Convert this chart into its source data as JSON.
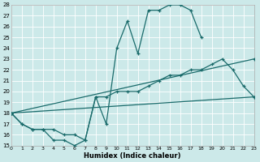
{
  "xlabel": "Humidex (Indice chaleur)",
  "bg_color": "#cce9e9",
  "grid_color": "#ffffff",
  "line_color": "#1a6b6b",
  "xlim": [
    0,
    23
  ],
  "ylim": [
    15,
    28
  ],
  "xticks": [
    0,
    1,
    2,
    3,
    4,
    5,
    6,
    7,
    8,
    9,
    10,
    11,
    12,
    13,
    14,
    15,
    16,
    17,
    18,
    19,
    20,
    21,
    22,
    23
  ],
  "yticks": [
    15,
    16,
    17,
    18,
    19,
    20,
    21,
    22,
    23,
    24,
    25,
    26,
    27,
    28
  ],
  "line1_x": [
    0,
    1,
    2,
    3,
    4,
    5,
    6,
    7,
    8,
    9,
    10,
    11,
    12,
    13,
    14,
    15,
    16,
    17,
    18
  ],
  "line1_y": [
    18,
    17,
    16.5,
    16.5,
    16.5,
    16,
    16,
    15.5,
    19.5,
    17,
    24,
    26.5,
    23.5,
    27.5,
    27.5,
    28,
    28,
    27.5,
    25
  ],
  "line2_x": [
    0,
    23
  ],
  "line2_y": [
    18,
    23
  ],
  "line3_x": [
    0,
    23
  ],
  "line3_y": [
    18,
    19.5
  ],
  "line4_x": [
    0,
    1,
    2,
    3,
    4,
    5,
    6,
    7,
    8,
    9,
    10,
    11,
    12,
    13,
    14,
    15,
    16,
    17,
    18,
    19,
    20,
    21,
    22,
    23
  ],
  "line4_y": [
    18,
    17,
    16.5,
    16.5,
    15.5,
    15.5,
    15,
    15.5,
    19.5,
    19.5,
    20,
    20,
    20,
    20.5,
    21,
    21.5,
    21.5,
    22,
    22,
    22.5,
    23,
    22,
    20.5,
    19.5
  ]
}
